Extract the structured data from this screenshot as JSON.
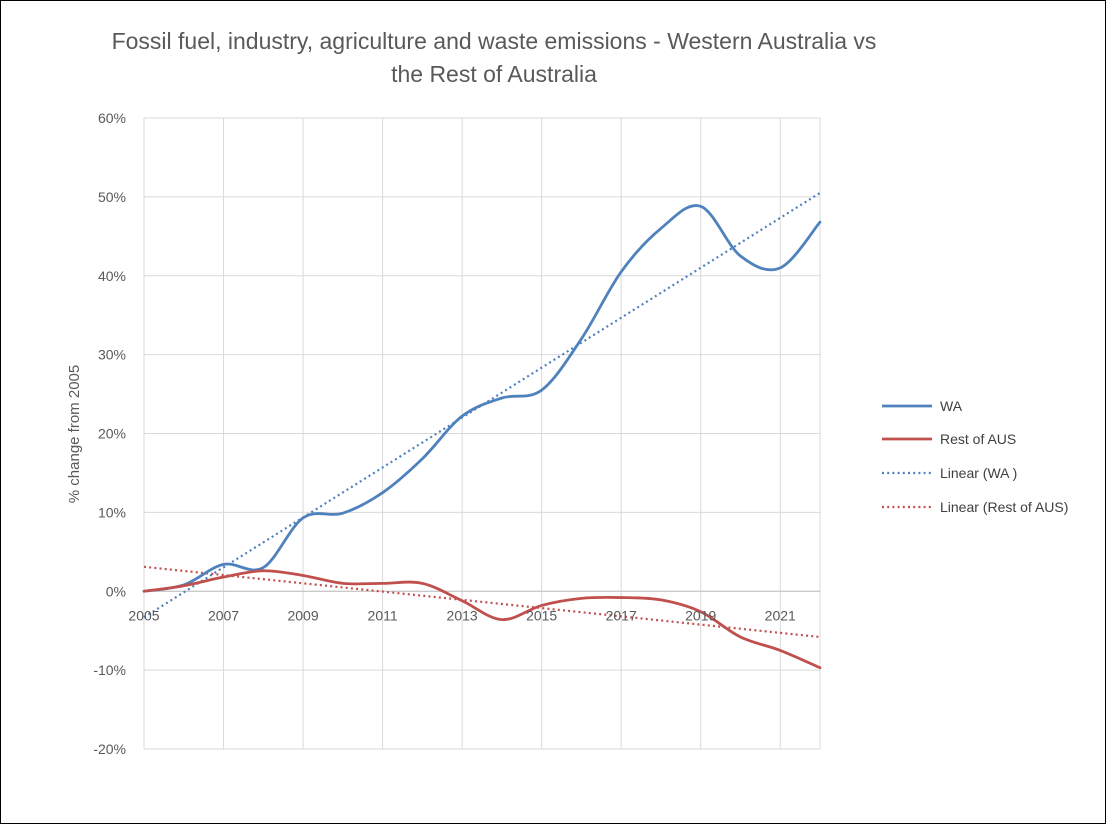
{
  "chart_data": {
    "type": "line",
    "title": "Fossil fuel, industry, agriculture and waste emissions  - Western Australia vs the Rest of Australia",
    "title_lines": [
      "Fossil fuel, industry, agriculture and waste emissions  - Western Australia vs",
      "the Rest of Australia"
    ],
    "xlabel": "",
    "ylabel": "% change from 2005",
    "xlim": [
      2005,
      2022
    ],
    "ylim": [
      -20,
      60
    ],
    "x_ticks": [
      2005,
      2007,
      2009,
      2011,
      2013,
      2015,
      2017,
      2019,
      2021
    ],
    "x_tick_labels": [
      "2005",
      "2007",
      "2009",
      "2011",
      "2013",
      "2015",
      "2017",
      "2019",
      "2021"
    ],
    "y_ticks": [
      -20,
      -10,
      0,
      10,
      20,
      30,
      40,
      50,
      60
    ],
    "y_tick_labels": [
      "-20%",
      "-10%",
      "0%",
      "10%",
      "20%",
      "30%",
      "40%",
      "50%",
      "60%"
    ],
    "grid": true,
    "legend_position": "right",
    "x": [
      2005,
      2006,
      2007,
      2008,
      2009,
      2010,
      2011,
      2012,
      2013,
      2014,
      2015,
      2016,
      2017,
      2018,
      2019,
      2020,
      2021,
      2022
    ],
    "series": [
      {
        "name": "WA",
        "color": "#4f81bd",
        "style": "solid",
        "values": [
          0,
          0.8,
          3.4,
          3.0,
          9.3,
          9.9,
          12.5,
          16.8,
          22.2,
          24.5,
          25.5,
          32.0,
          40.5,
          46.0,
          48.8,
          42.5,
          41.0,
          46.8
        ]
      },
      {
        "name": "Rest of AUS",
        "color": "#c0504d",
        "style": "solid",
        "values": [
          0,
          0.7,
          1.8,
          2.6,
          2.0,
          1.0,
          1.0,
          1.0,
          -1.2,
          -3.6,
          -1.8,
          -0.9,
          -0.8,
          -1.1,
          -2.6,
          -5.8,
          -7.5,
          -9.7
        ]
      },
      {
        "name": "Linear (WA )",
        "color": "#4f81bd",
        "style": "dotted",
        "trendline_of": "WA",
        "start": [
          2005,
          -3.3
        ],
        "end": [
          2022,
          50.5
        ]
      },
      {
        "name": "Linear (Rest of AUS)",
        "color": "#c0504d",
        "style": "dotted",
        "trendline_of": "Rest of AUS",
        "start": [
          2005,
          3.1
        ],
        "end": [
          2022,
          -5.8
        ]
      }
    ]
  }
}
